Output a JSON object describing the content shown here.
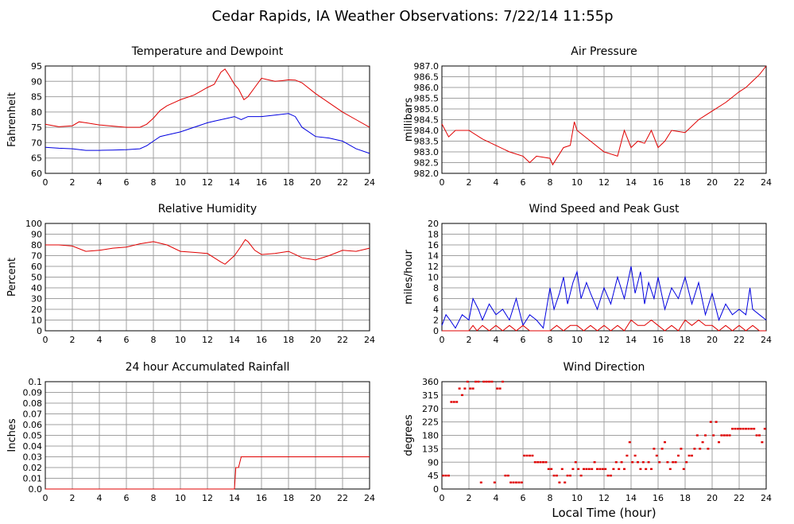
{
  "page": {
    "title": "Cedar Rapids, IA Weather Observations: 7/22/14 11:55p",
    "xlabel": "Local Time (hour)"
  },
  "colors": {
    "red": "#e00000",
    "blue": "#0000e0",
    "grid": "#a0a0a0",
    "axis": "#000000"
  },
  "chart_data": [
    {
      "type": "line",
      "title": "Temperature and Dewpoint",
      "ylabel": "Fahrenheit",
      "xlim": [
        0,
        24
      ],
      "ylim": [
        60,
        95
      ],
      "xticks": [
        0,
        2,
        4,
        6,
        8,
        10,
        12,
        14,
        16,
        18,
        20,
        22,
        24
      ],
      "yticks": [
        60,
        65,
        70,
        75,
        80,
        85,
        90,
        95
      ],
      "grid": true,
      "series": [
        {
          "color": "red",
          "x": [
            0,
            1,
            2,
            2.5,
            3,
            4,
            5,
            6,
            7,
            7.5,
            8,
            8.5,
            9,
            10,
            11,
            12,
            12.5,
            13,
            13.3,
            13.6,
            14,
            14.3,
            14.7,
            15,
            15.5,
            16,
            16.5,
            17,
            17.5,
            18,
            18.5,
            19,
            20,
            21,
            22,
            23,
            24
          ],
          "y": [
            76,
            75.2,
            75.5,
            76.8,
            76.5,
            75.8,
            75.4,
            75,
            75,
            76,
            78,
            80.5,
            82,
            84,
            85.5,
            88,
            89,
            93,
            94,
            92,
            89,
            87.5,
            84,
            85,
            88,
            91,
            90.5,
            90,
            90.2,
            90.5,
            90.4,
            89.5,
            86,
            83,
            80,
            77.5,
            75
          ]
        },
        {
          "color": "blue",
          "x": [
            0,
            1,
            2,
            3,
            4,
            5,
            6,
            7,
            7.5,
            8,
            8.5,
            9,
            10,
            11,
            12,
            12.5,
            13,
            13.5,
            14,
            14.5,
            15,
            16,
            17,
            18,
            18.5,
            19,
            20,
            21,
            22,
            23,
            24
          ],
          "y": [
            68.5,
            68.2,
            68,
            67.5,
            67.5,
            67.6,
            67.7,
            68,
            69,
            70.5,
            72,
            72.5,
            73.5,
            75,
            76.5,
            77,
            77.5,
            78,
            78.5,
            77.5,
            78.5,
            78.5,
            79,
            79.5,
            78.5,
            75,
            72,
            71.5,
            70.5,
            68,
            66.5
          ]
        }
      ]
    },
    {
      "type": "line",
      "title": "Air Pressure",
      "ylabel": "millibars",
      "xlim": [
        0,
        24
      ],
      "ylim": [
        982.0,
        987.0
      ],
      "xticks": [
        0,
        2,
        4,
        6,
        8,
        10,
        12,
        14,
        16,
        18,
        20,
        22,
        24
      ],
      "yticks": [
        "982.0",
        "982.5",
        "983.0",
        "983.5",
        "984.0",
        "984.5",
        "985.0",
        "985.5",
        "986.0",
        "986.5",
        "987.0"
      ],
      "grid": true,
      "series": [
        {
          "color": "red",
          "x": [
            0,
            0.5,
            1,
            2,
            3,
            4,
            5,
            6,
            6.5,
            7,
            8,
            8.2,
            9,
            9.5,
            9.8,
            10,
            11,
            12,
            13,
            13.5,
            14,
            14.5,
            15,
            15.5,
            16,
            16.5,
            17,
            18,
            19,
            20,
            21,
            22,
            22.5,
            23,
            23.5,
            24
          ],
          "y": [
            984.3,
            983.7,
            984,
            984,
            983.6,
            983.3,
            983,
            982.8,
            982.5,
            982.8,
            982.7,
            982.4,
            983.2,
            983.3,
            984.4,
            984,
            983.5,
            983,
            982.8,
            984,
            983.2,
            983.5,
            983.4,
            984,
            983.2,
            983.5,
            984,
            983.9,
            984.5,
            984.9,
            985.3,
            985.8,
            986.0,
            986.3,
            986.6,
            987.0
          ]
        }
      ]
    },
    {
      "type": "line",
      "title": "Relative Humidity",
      "ylabel": "Percent",
      "xlim": [
        0,
        24
      ],
      "ylim": [
        0,
        100
      ],
      "xticks": [
        0,
        2,
        4,
        6,
        8,
        10,
        12,
        14,
        16,
        18,
        20,
        22,
        24
      ],
      "yticks": [
        0,
        10,
        20,
        30,
        40,
        50,
        60,
        70,
        80,
        90,
        100
      ],
      "grid": true,
      "series": [
        {
          "color": "red",
          "x": [
            0,
            1,
            2,
            3,
            4,
            5,
            6,
            7,
            8,
            9,
            10,
            11,
            12,
            12.5,
            13,
            13.3,
            14,
            14.5,
            14.8,
            15,
            15.5,
            16,
            17,
            18,
            18.5,
            19,
            20,
            21,
            22,
            23,
            24
          ],
          "y": [
            80,
            80,
            79,
            74,
            75,
            77,
            78,
            81,
            83,
            80,
            74,
            73,
            72,
            68,
            64,
            62,
            70,
            79,
            85,
            83,
            75,
            71,
            72,
            74,
            71,
            68,
            66,
            70,
            75,
            74,
            77
          ]
        }
      ]
    },
    {
      "type": "line",
      "title": "Wind Speed and Peak Gust",
      "ylabel": "miles/hour",
      "xlim": [
        0,
        24
      ],
      "ylim": [
        0,
        20
      ],
      "xticks": [
        0,
        2,
        4,
        6,
        8,
        10,
        12,
        14,
        16,
        18,
        20,
        22,
        24
      ],
      "yticks": [
        0,
        2,
        4,
        6,
        8,
        10,
        12,
        14,
        16,
        18,
        20
      ],
      "grid": true,
      "series": [
        {
          "color": "blue",
          "x": [
            0,
            0.3,
            0.6,
            1,
            1.5,
            2,
            2.3,
            2.7,
            3,
            3.5,
            4,
            4.5,
            5,
            5.5,
            6,
            6.5,
            7,
            7.5,
            8,
            8.3,
            8.7,
            9,
            9.3,
            9.7,
            10,
            10.3,
            10.7,
            11,
            11.5,
            12,
            12.5,
            13,
            13.5,
            14,
            14.3,
            14.7,
            15,
            15.3,
            15.7,
            16,
            16.5,
            17,
            17.5,
            18,
            18.5,
            19,
            19.5,
            20,
            20.5,
            21,
            21.5,
            22,
            22.5,
            22.8,
            23,
            23.5,
            24
          ],
          "y": [
            1,
            3,
            2,
            0.5,
            3,
            2,
            6,
            4,
            2,
            5,
            3,
            4,
            2,
            6,
            1,
            3,
            2,
            0.5,
            8,
            4,
            7,
            10,
            5,
            9,
            11,
            6,
            9,
            7,
            4,
            8,
            5,
            10,
            6,
            12,
            7,
            11,
            5,
            9,
            6,
            10,
            4,
            8,
            6,
            10,
            5,
            9,
            3,
            7,
            2,
            5,
            3,
            4,
            3,
            8,
            4,
            3,
            2
          ]
        },
        {
          "color": "red",
          "x": [
            0,
            1,
            2,
            2.3,
            2.6,
            3,
            3.5,
            4,
            4.5,
            5,
            5.5,
            6,
            6.5,
            7,
            7.5,
            8,
            8.5,
            9,
            9.5,
            10,
            10.5,
            11,
            11.5,
            12,
            12.5,
            13,
            13.5,
            14,
            14.5,
            15,
            15.5,
            16,
            16.5,
            17,
            17.5,
            18,
            18.5,
            19,
            19.5,
            20,
            20.5,
            21,
            21.5,
            22,
            22.5,
            23,
            23.5,
            24
          ],
          "y": [
            0,
            0,
            0,
            1,
            0,
            1,
            0,
            1,
            0,
            1,
            0,
            1,
            0,
            0,
            0,
            0,
            1,
            0,
            1,
            1,
            0,
            1,
            0,
            1,
            0,
            1,
            0,
            2,
            1,
            1,
            2,
            1,
            0,
            1,
            0,
            2,
            1,
            2,
            1,
            1,
            0,
            1,
            0,
            1,
            0,
            1,
            0,
            0
          ]
        }
      ]
    },
    {
      "type": "line",
      "title": "24 hour Accumulated Rainfall",
      "ylabel": "Inches",
      "xlim": [
        0,
        24
      ],
      "ylim": [
        0,
        0.1
      ],
      "xticks": [
        0,
        2,
        4,
        6,
        8,
        10,
        12,
        14,
        16,
        18,
        20,
        22,
        24
      ],
      "yticks": [
        "0.0",
        "0.01",
        "0.02",
        "0.03",
        "0.04",
        "0.05",
        "0.06",
        "0.07",
        "0.08",
        "0.09",
        "0.1"
      ],
      "grid": true,
      "series": [
        {
          "color": "red",
          "x": [
            0,
            14,
            14.1,
            14.3,
            14.5,
            24
          ],
          "y": [
            0,
            0,
            0.02,
            0.02,
            0.03,
            0.03
          ]
        }
      ]
    },
    {
      "type": "scatter",
      "title": "Wind Direction",
      "ylabel": "degrees",
      "xlim": [
        0,
        24
      ],
      "ylim": [
        0,
        360
      ],
      "xticks": [
        0,
        2,
        4,
        6,
        8,
        10,
        12,
        14,
        16,
        18,
        20,
        22,
        24
      ],
      "yticks": [
        0,
        45,
        90,
        135,
        180,
        225,
        270,
        315,
        360
      ],
      "grid": true,
      "series": [
        {
          "color": "red",
          "x": [
            0.1,
            0.3,
            0.5,
            0.7,
            0.9,
            1.1,
            1.3,
            1.5,
            1.7,
            1.9,
            2.1,
            2.3,
            2.5,
            2.7,
            2.9,
            3.1,
            3.3,
            3.5,
            3.7,
            3.9,
            4.1,
            4.3,
            4.5,
            4.7,
            4.9,
            5.1,
            5.3,
            5.5,
            5.7,
            5.9,
            6.1,
            6.3,
            6.5,
            6.7,
            6.9,
            7.1,
            7.3,
            7.5,
            7.7,
            7.9,
            8.1,
            8.3,
            8.5,
            8.7,
            8.9,
            9.1,
            9.3,
            9.5,
            9.7,
            9.9,
            10.1,
            10.3,
            10.5,
            10.7,
            10.9,
            11.1,
            11.3,
            11.5,
            11.7,
            11.9,
            12.1,
            12.3,
            12.5,
            12.7,
            12.9,
            13.1,
            13.3,
            13.5,
            13.7,
            13.9,
            14.1,
            14.3,
            14.5,
            14.7,
            14.9,
            15.1,
            15.3,
            15.5,
            15.7,
            15.9,
            16.1,
            16.3,
            16.5,
            16.7,
            16.9,
            17.1,
            17.3,
            17.5,
            17.7,
            17.9,
            18.1,
            18.3,
            18.5,
            18.7,
            18.9,
            19.1,
            19.3,
            19.5,
            19.7,
            19.9,
            20.1,
            20.3,
            20.5,
            20.7,
            20.9,
            21.1,
            21.3,
            21.5,
            21.7,
            21.9,
            22.1,
            22.3,
            22.5,
            22.7,
            22.9,
            23.1,
            23.3,
            23.5,
            23.7,
            23.9
          ],
          "y": [
            45,
            45,
            45,
            292,
            292,
            292,
            337,
            315,
            337,
            360,
            337,
            337,
            360,
            360,
            22,
            360,
            360,
            360,
            360,
            22,
            337,
            337,
            360,
            45,
            45,
            22,
            22,
            22,
            22,
            22,
            112,
            112,
            112,
            112,
            90,
            90,
            90,
            90,
            90,
            67,
            67,
            45,
            45,
            22,
            67,
            22,
            45,
            45,
            67,
            90,
            67,
            45,
            67,
            67,
            67,
            67,
            90,
            67,
            67,
            67,
            67,
            45,
            45,
            67,
            90,
            67,
            90,
            67,
            112,
            157,
            90,
            112,
            90,
            67,
            90,
            67,
            90,
            67,
            135,
            112,
            90,
            135,
            157,
            90,
            67,
            90,
            90,
            112,
            135,
            67,
            90,
            112,
            112,
            135,
            180,
            135,
            157,
            180,
            135,
            225,
            180,
            225,
            157,
            180,
            180,
            180,
            180,
            202,
            202,
            202,
            202,
            202,
            202,
            202,
            202,
            202,
            180,
            180,
            157,
            202
          ]
        }
      ]
    }
  ]
}
